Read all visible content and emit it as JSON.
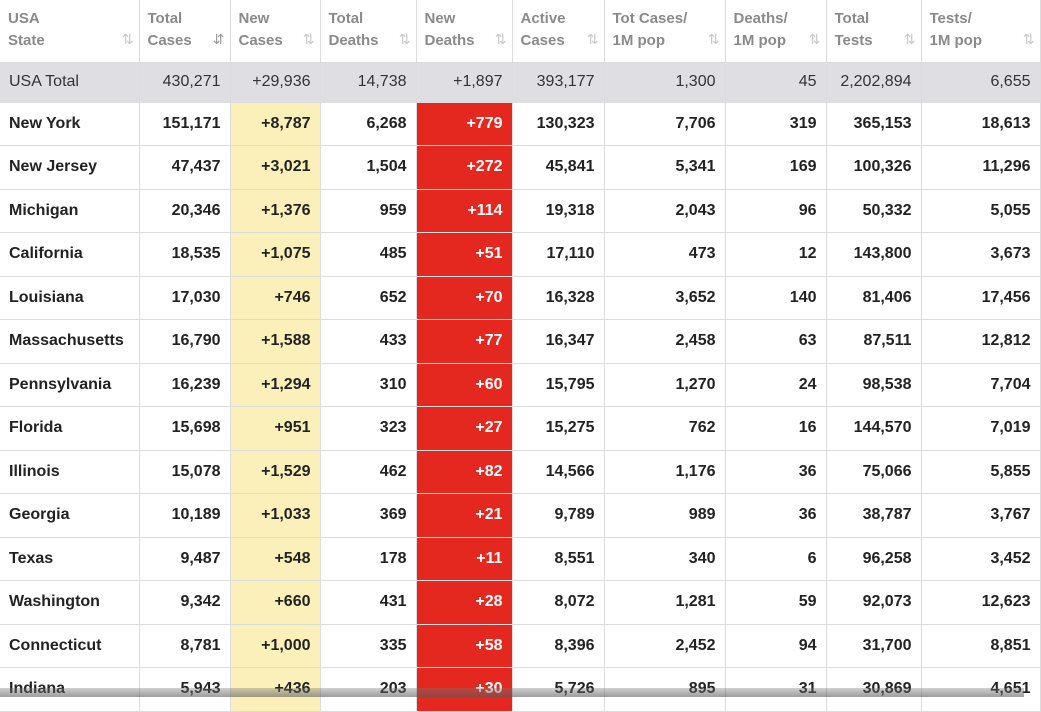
{
  "headers": [
    {
      "line1": "USA",
      "line2": "State",
      "sort_active": false
    },
    {
      "line1": "Total",
      "line2": "Cases",
      "sort_active": true
    },
    {
      "line1": "New",
      "line2": "Cases",
      "sort_active": false
    },
    {
      "line1": "Total",
      "line2": "Deaths",
      "sort_active": false
    },
    {
      "line1": "New",
      "line2": "Deaths",
      "sort_active": false
    },
    {
      "line1": "Active",
      "line2": "Cases",
      "sort_active": false
    },
    {
      "line1": "Tot Cases/",
      "line2": "1M pop",
      "sort_active": false
    },
    {
      "line1": "Deaths/",
      "line2": "1M pop",
      "sort_active": false
    },
    {
      "line1": "Total",
      "line2": "Tests",
      "sort_active": false
    },
    {
      "line1": "Tests/",
      "line2": "1M pop",
      "sort_active": false
    }
  ],
  "sort_icon": "⇅",
  "sort_icon_active": "⇵",
  "total_row": [
    "USA Total",
    "430,271",
    "+29,936",
    "14,738",
    "+1,897",
    "393,177",
    "1,300",
    "45",
    "2,202,894",
    "6,655"
  ],
  "rows": [
    [
      "New York",
      "151,171",
      "+8,787",
      "6,268",
      "+779",
      "130,323",
      "7,706",
      "319",
      "365,153",
      "18,613"
    ],
    [
      "New Jersey",
      "47,437",
      "+3,021",
      "1,504",
      "+272",
      "45,841",
      "5,341",
      "169",
      "100,326",
      "11,296"
    ],
    [
      "Michigan",
      "20,346",
      "+1,376",
      "959",
      "+114",
      "19,318",
      "2,043",
      "96",
      "50,332",
      "5,055"
    ],
    [
      "California",
      "18,535",
      "+1,075",
      "485",
      "+51",
      "17,110",
      "473",
      "12",
      "143,800",
      "3,673"
    ],
    [
      "Louisiana",
      "17,030",
      "+746",
      "652",
      "+70",
      "16,328",
      "3,652",
      "140",
      "81,406",
      "17,456"
    ],
    [
      "Massachusetts",
      "16,790",
      "+1,588",
      "433",
      "+77",
      "16,347",
      "2,458",
      "63",
      "87,511",
      "12,812"
    ],
    [
      "Pennsylvania",
      "16,239",
      "+1,294",
      "310",
      "+60",
      "15,795",
      "1,270",
      "24",
      "98,538",
      "7,704"
    ],
    [
      "Florida",
      "15,698",
      "+951",
      "323",
      "+27",
      "15,275",
      "762",
      "16",
      "144,570",
      "7,019"
    ],
    [
      "Illinois",
      "15,078",
      "+1,529",
      "462",
      "+82",
      "14,566",
      "1,176",
      "36",
      "75,066",
      "5,855"
    ],
    [
      "Georgia",
      "10,189",
      "+1,033",
      "369",
      "+21",
      "9,789",
      "989",
      "36",
      "38,787",
      "3,767"
    ],
    [
      "Texas",
      "9,487",
      "+548",
      "178",
      "+11",
      "8,551",
      "340",
      "6",
      "96,258",
      "3,452"
    ],
    [
      "Washington",
      "9,342",
      "+660",
      "431",
      "+28",
      "8,072",
      "1,281",
      "59",
      "92,073",
      "12,623"
    ],
    [
      "Connecticut",
      "8,781",
      "+1,000",
      "335",
      "+58",
      "8,396",
      "2,452",
      "94",
      "31,700",
      "8,851"
    ],
    [
      "Indiana",
      "5,943",
      "+436",
      "203",
      "+30",
      "5,726",
      "895",
      "31",
      "30,869",
      "4,651"
    ]
  ],
  "colors": {
    "new_cases_bg": "#fbf0b9",
    "new_deaths_bg": "#e5281f",
    "total_row_bg": "#dfdfe3",
    "header_text": "#8a8a8a"
  }
}
